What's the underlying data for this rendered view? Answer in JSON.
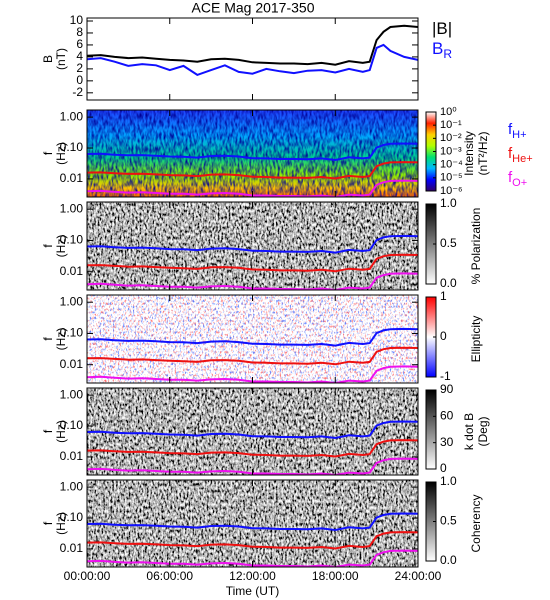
{
  "chart_data": [
    {
      "type": "line",
      "title": "ACE Mag 2017-350",
      "ylabel": "B",
      "yunit": "(nT)",
      "xlim": [
        0,
        24
      ],
      "ylim": [
        -3.2,
        10.5
      ],
      "yticks": [
        -2,
        0,
        2,
        4,
        6,
        8,
        10
      ],
      "x": [
        0,
        1,
        2,
        3,
        4,
        5,
        6,
        7,
        8,
        9,
        10,
        11,
        12,
        13,
        14,
        15,
        16,
        17,
        18,
        19,
        20,
        20.5,
        21,
        21.5,
        22,
        23,
        24
      ],
      "series": [
        {
          "name": "|B|",
          "color": "#000000",
          "values": [
            4.2,
            4.3,
            4.0,
            3.8,
            3.9,
            3.7,
            3.5,
            3.4,
            3.2,
            3.6,
            3.7,
            3.5,
            3.1,
            3.0,
            2.9,
            2.9,
            2.8,
            3.0,
            2.7,
            3.3,
            3.0,
            3.2,
            6.8,
            8.2,
            9.0,
            9.2,
            9.0
          ]
        },
        {
          "name": "B",
          "sub": "R",
          "color": "#1010ff",
          "values": [
            3.6,
            3.8,
            3.2,
            2.5,
            2.8,
            2.6,
            1.8,
            2.5,
            1.0,
            1.8,
            2.6,
            1.5,
            1.2,
            2.0,
            1.6,
            1.3,
            1.7,
            1.8,
            1.4,
            2.0,
            1.5,
            1.8,
            5.5,
            6.0,
            5.0,
            4.0,
            3.5
          ]
        }
      ]
    },
    {
      "type": "spectrogram",
      "texture": "rainbow",
      "ylabel": "f",
      "yunit": "(Hz)",
      "ylog": true,
      "xlim": [
        0,
        24
      ],
      "ylim": [
        0.0026,
        1.7
      ],
      "yticks": [
        {
          "value": 1,
          "label": "1.00"
        },
        {
          "value": 0.1,
          "label": "0.10"
        },
        0.01
      ],
      "x": [
        0,
        1,
        2,
        3,
        4,
        5,
        6,
        7,
        8,
        9,
        10,
        11,
        12,
        13,
        14,
        15,
        16,
        17,
        18,
        19,
        20,
        20.5,
        21,
        21.5,
        22,
        23,
        24
      ],
      "series": [
        {
          "name": "f",
          "sub": "H+",
          "color": "#1010ff",
          "values": [
            0.064,
            0.065,
            0.061,
            0.058,
            0.059,
            0.056,
            0.053,
            0.052,
            0.049,
            0.055,
            0.056,
            0.053,
            0.047,
            0.046,
            0.044,
            0.044,
            0.043,
            0.046,
            0.041,
            0.05,
            0.046,
            0.049,
            0.103,
            0.125,
            0.137,
            0.14,
            0.137
          ]
        },
        {
          "name": "f",
          "sub": "He+",
          "color": "#ee1010",
          "values": [
            0.016,
            0.0163,
            0.0153,
            0.0145,
            0.0148,
            0.014,
            0.0133,
            0.013,
            0.0123,
            0.0138,
            0.014,
            0.0133,
            0.0118,
            0.0115,
            0.011,
            0.011,
            0.0108,
            0.0115,
            0.0103,
            0.0125,
            0.0115,
            0.0123,
            0.0258,
            0.0313,
            0.0343,
            0.035,
            0.0343
          ]
        },
        {
          "name": "f",
          "sub": "O+",
          "color": "#ee10ee",
          "values": [
            0.004,
            0.0041,
            0.0038,
            0.0036,
            0.0037,
            0.0035,
            0.0033,
            0.0033,
            0.0031,
            0.0034,
            0.0035,
            0.0033,
            0.0029,
            0.0029,
            0.0028,
            0.0028,
            0.0027,
            0.0029,
            0.0026,
            0.0031,
            0.0029,
            0.0031,
            0.0064,
            0.0078,
            0.0086,
            0.0088,
            0.0086
          ]
        }
      ],
      "colorbar": {
        "label": "Intensity",
        "unit": "(nT²/Hz)",
        "log": true,
        "lim": [
          1e-06,
          1
        ],
        "colors": [
          "#30006a",
          "#0000ff",
          "#00b8ff",
          "#00e070",
          "#b0ff00",
          "#ffd000",
          "#ff2000",
          "#ffffff"
        ],
        "ticks": [
          {
            "value": 1,
            "label": "10⁰"
          },
          {
            "value": 0.1,
            "label": "10⁻¹"
          },
          {
            "value": 0.01,
            "label": "10⁻²"
          },
          {
            "value": 0.001,
            "label": "10⁻³"
          },
          {
            "value": 0.0001,
            "label": "10⁻⁴"
          },
          {
            "value": 1e-05,
            "label": "10⁻⁵"
          },
          {
            "value": 1e-06,
            "label": "10⁻⁶"
          }
        ]
      }
    },
    {
      "type": "spectrogram",
      "texture": "gray",
      "ylabel": "f",
      "yunit": "(Hz)",
      "ylog": true,
      "xlim": [
        0,
        24
      ],
      "ylim": [
        0.0026,
        1.7
      ],
      "yticks": [
        {
          "value": 1,
          "label": "1.00"
        },
        {
          "value": 0.1,
          "label": "0.10"
        },
        0.01
      ],
      "colorbar": {
        "label": "% Polarization",
        "lim": [
          0,
          1
        ],
        "colors": [
          "#ffffff",
          "#000000"
        ],
        "ticks": [
          {
            "value": 0,
            "label": "0.0"
          },
          0.5,
          {
            "value": 1,
            "label": "1.0"
          }
        ]
      }
    },
    {
      "type": "spectrogram",
      "texture": "redblue",
      "ylabel": "f",
      "yunit": "(Hz)",
      "ylog": true,
      "xlim": [
        0,
        24
      ],
      "ylim": [
        0.0026,
        1.7
      ],
      "yticks": [
        {
          "value": 1,
          "label": "1.00"
        },
        {
          "value": 0.1,
          "label": "0.10"
        },
        0.01
      ],
      "colorbar": {
        "label": "Ellipticity",
        "lim": [
          -1,
          1
        ],
        "colors": [
          "#0000ff",
          "#ffffff",
          "#ff0000"
        ],
        "ticks": [
          -1,
          0,
          1
        ]
      }
    },
    {
      "type": "spectrogram",
      "texture": "gray",
      "ylabel": "f",
      "yunit": "(Hz)",
      "ylog": true,
      "xlim": [
        0,
        24
      ],
      "ylim": [
        0.0026,
        1.7
      ],
      "yticks": [
        {
          "value": 1,
          "label": "1.00"
        },
        {
          "value": 0.1,
          "label": "0.10"
        },
        0.01
      ],
      "colorbar": {
        "label": "k dot B",
        "unit": "(Deg)",
        "lim": [
          0,
          90
        ],
        "colors": [
          "#ffffff",
          "#000000"
        ],
        "ticks": [
          0,
          30,
          60,
          90
        ]
      }
    },
    {
      "type": "spectrogram",
      "texture": "gray",
      "ylabel": "f",
      "yunit": "(Hz)",
      "ylog": true,
      "xlim": [
        0,
        24
      ],
      "ylim": [
        0.0026,
        1.7
      ],
      "yticks": [
        {
          "value": 1,
          "label": "1.00"
        },
        {
          "value": 0.1,
          "label": "0.10"
        },
        0.01
      ],
      "colorbar": {
        "label": "Coherency",
        "lim": [
          0,
          1
        ],
        "colors": [
          "#ffffff",
          "#000000"
        ],
        "ticks": [
          {
            "value": 0,
            "label": "0.0"
          },
          0.5,
          {
            "value": 1,
            "label": "1.0"
          }
        ]
      },
      "xlabel": "Time (UT)",
      "xticks": [
        {
          "value": 0,
          "label": "00:00:00"
        },
        {
          "value": 6,
          "label": "06:00:00"
        },
        {
          "value": 12,
          "label": "12:00:00"
        },
        {
          "value": 18,
          "label": "18:00:00"
        },
        {
          "value": 24,
          "label": "24:00:00"
        }
      ]
    }
  ]
}
